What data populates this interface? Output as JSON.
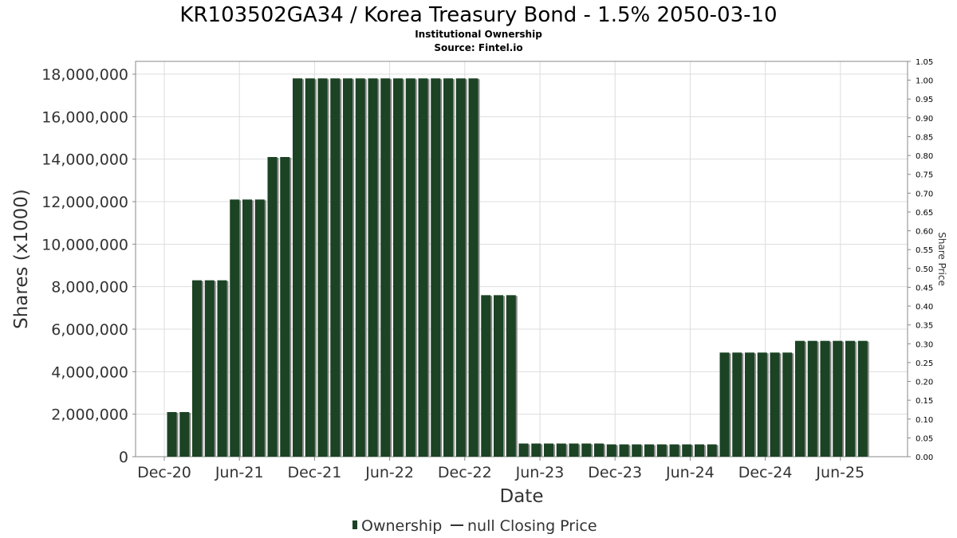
{
  "chart_data": {
    "type": "bar",
    "title": "KR103502GA34 / Korea Treasury Bond - 1.5% 2050-03-10",
    "subtitle": "Institutional Ownership",
    "source": "Source: Fintel.io",
    "xlabel": "Date",
    "ylabel": "Shares (x1000)",
    "y2label": "Share Price",
    "ylim": [
      0,
      18600000
    ],
    "y2lim": [
      0,
      1.05
    ],
    "yticks": [
      0,
      2000000,
      4000000,
      6000000,
      8000000,
      10000000,
      12000000,
      14000000,
      16000000,
      18000000
    ],
    "ytick_labels": [
      "0",
      "2,000,000",
      "4,000,000",
      "6,000,000",
      "8,000,000",
      "10,000,000",
      "12,000,000",
      "14,000,000",
      "16,000,000",
      "18,000,000"
    ],
    "y2ticks": [
      0,
      0.05,
      0.1,
      0.15,
      0.2,
      0.25,
      0.3,
      0.35,
      0.4,
      0.45,
      0.5,
      0.55,
      0.6,
      0.65,
      0.7,
      0.75,
      0.8,
      0.85,
      0.9,
      0.95,
      1.0,
      1.05
    ],
    "y2tick_labels": [
      "0.00",
      "0.05",
      "0.10",
      "0.15",
      "0.20",
      "0.25",
      "0.30",
      "0.35",
      "0.40",
      "0.45",
      "0.50",
      "0.55",
      "0.60",
      "0.65",
      "0.70",
      "0.75",
      "0.80",
      "0.85",
      "0.90",
      "0.95",
      "1.00",
      "1.05"
    ],
    "xticks": [
      "Dec-20",
      "Jun-21",
      "Dec-21",
      "Jun-22",
      "Dec-22",
      "Jun-23",
      "Dec-23",
      "Jun-24",
      "Dec-24",
      "Jun-25"
    ],
    "grid": true,
    "legend_position": "bottom",
    "series": [
      {
        "name": "Ownership",
        "color": "#1b4324",
        "values": [
          2100000,
          2100000,
          8300000,
          8300000,
          8300000,
          12100000,
          12100000,
          12100000,
          14100000,
          14100000,
          17800000,
          17800000,
          17800000,
          17800000,
          17800000,
          17800000,
          17800000,
          17800000,
          17800000,
          17800000,
          17800000,
          17800000,
          17800000,
          17800000,
          17800000,
          7600000,
          7600000,
          7600000,
          620000,
          620000,
          620000,
          620000,
          620000,
          620000,
          620000,
          580000,
          580000,
          580000,
          580000,
          580000,
          580000,
          580000,
          580000,
          580000,
          4900000,
          4900000,
          4900000,
          4900000,
          4900000,
          4900000,
          5450000,
          5450000,
          5450000,
          5450000,
          5450000,
          5450000
        ]
      }
    ],
    "legend": {
      "ownership_label": "Ownership",
      "price_label": "null Closing Price"
    }
  }
}
